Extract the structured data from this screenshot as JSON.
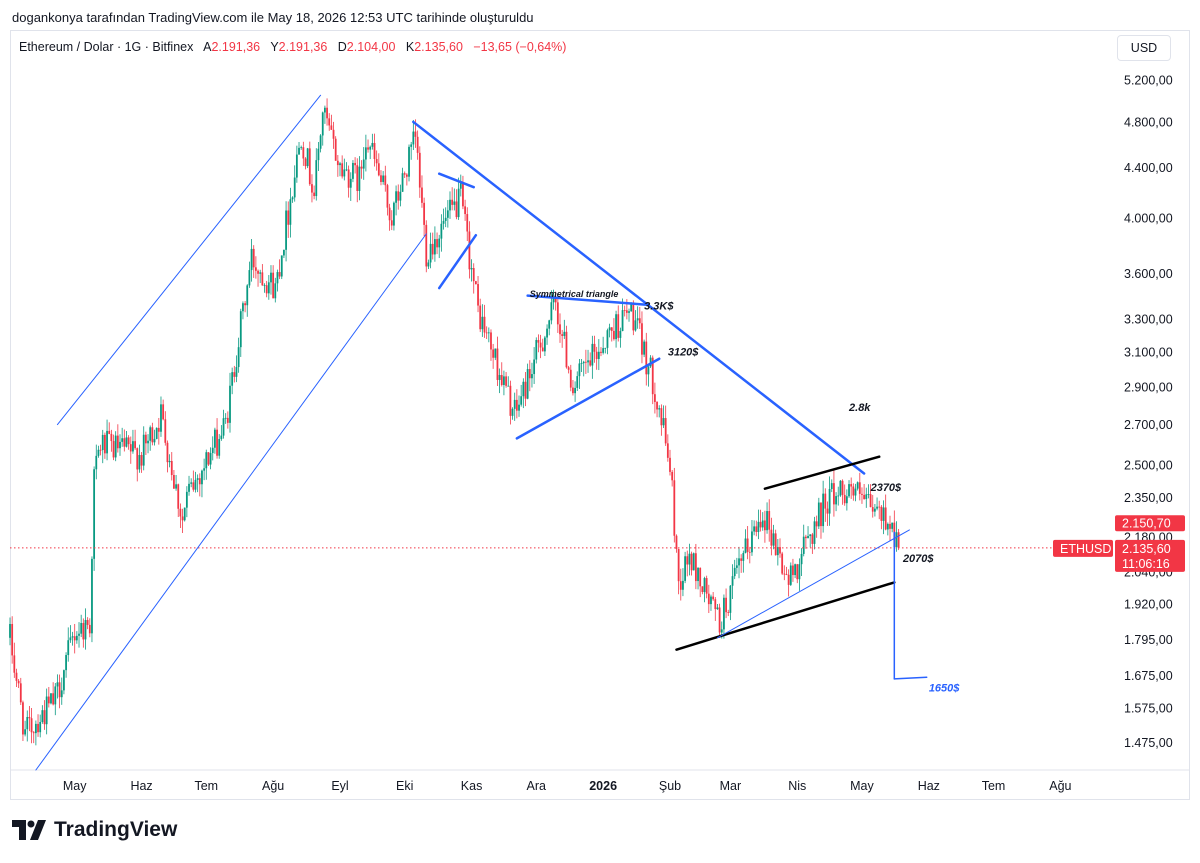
{
  "header": {
    "attribution": "dogankonya tarafından TradingView.com ile May 18, 2026 12:53 UTC tarihinde oluşturuldu"
  },
  "legend": {
    "symbol": "Ethereum / Dolar · 1G · Bitfinex",
    "a_label": "A",
    "a_value": "2.191,36",
    "y_label": "Y",
    "y_value": "2.191,36",
    "d_label": "D",
    "d_value": "2.104,00",
    "k_label": "K",
    "k_value": "2.135,60",
    "change": "−13,65 (−0,64%)"
  },
  "currency_button": "USD",
  "logo_text": "TradingView",
  "colors": {
    "up": "#089981",
    "down": "#f23645",
    "trendline": "#2962ff",
    "marker": "#f23645"
  },
  "price_badges": {
    "ticker": "ETHUSD",
    "upper": "2.150,70",
    "last": "2.135,60",
    "countdown": "11:06:16"
  },
  "chart_data": {
    "type": "candlestick",
    "y_scale": "log",
    "ylim": [
      1400,
      5400
    ],
    "ytick_values": [
      1475,
      1575,
      1675,
      1795,
      1920,
      2040,
      2180,
      2350,
      2500,
      2700,
      2900,
      3100,
      3300,
      3600,
      4000,
      4400,
      4800,
      5200
    ],
    "ytick_labels": [
      "1.475,00",
      "1.575,00",
      "1.675,00",
      "1.795,00",
      "1.920,00",
      "2.040,00",
      "2.180,00",
      "2.350,00",
      "2.500,00",
      "2.700,00",
      "2.900,00",
      "3.100,00",
      "3.300,00",
      "3.600,00",
      "4.000,00",
      "4.400,00",
      "4.800,00",
      "5.200,00"
    ],
    "xlim": [
      "2025-04-01",
      "2026-08-24"
    ],
    "x_ticks": [
      {
        "date": "2025-05-01",
        "label": "May"
      },
      {
        "date": "2025-06-01",
        "label": "Haz"
      },
      {
        "date": "2025-07-01",
        "label": "Tem"
      },
      {
        "date": "2025-08-01",
        "label": "Ağu"
      },
      {
        "date": "2025-09-01",
        "label": "Eyl"
      },
      {
        "date": "2025-10-01",
        "label": "Eki"
      },
      {
        "date": "2025-11-01",
        "label": "Kas"
      },
      {
        "date": "2025-12-01",
        "label": "Ara"
      },
      {
        "date": "2026-01-01",
        "label": "2026"
      },
      {
        "date": "2026-02-01",
        "label": "Şub"
      },
      {
        "date": "2026-03-01",
        "label": "Mar"
      },
      {
        "date": "2026-04-01",
        "label": "Nis"
      },
      {
        "date": "2026-05-01",
        "label": "May"
      },
      {
        "date": "2026-06-01",
        "label": "Haz"
      },
      {
        "date": "2026-07-01",
        "label": "Tem"
      },
      {
        "date": "2026-08-01",
        "label": "Ağu"
      }
    ],
    "price_path": [
      [
        "2025-04-01",
        1800
      ],
      [
        "2025-04-08",
        1500
      ],
      [
        "2025-04-22",
        1600
      ],
      [
        "2025-05-01",
        1820
      ],
      [
        "2025-05-08",
        1850
      ],
      [
        "2025-05-10",
        2450
      ],
      [
        "2025-05-13",
        2600
      ],
      [
        "2025-06-01",
        2550
      ],
      [
        "2025-06-10",
        2750
      ],
      [
        "2025-06-20",
        2250
      ],
      [
        "2025-06-22",
        2350
      ],
      [
        "2025-07-10",
        2700
      ],
      [
        "2025-07-15",
        3100
      ],
      [
        "2025-07-22",
        3700
      ],
      [
        "2025-08-02",
        3500
      ],
      [
        "2025-08-14",
        4700
      ],
      [
        "2025-08-20",
        4200
      ],
      [
        "2025-08-24",
        4900
      ],
      [
        "2025-09-01",
        4400
      ],
      [
        "2025-09-10",
        4300
      ],
      [
        "2025-09-13",
        4700
      ],
      [
        "2025-09-25",
        4000
      ],
      [
        "2025-10-06",
        4650
      ],
      [
        "2025-10-11",
        3750
      ],
      [
        "2025-10-27",
        4150
      ],
      [
        "2025-11-04",
        3350
      ],
      [
        "2025-11-21",
        2750
      ],
      [
        "2025-12-03",
        3150
      ],
      [
        "2025-12-10",
        3400
      ],
      [
        "2025-12-18",
        2900
      ],
      [
        "2026-01-06",
        3250
      ],
      [
        "2026-01-14",
        3350
      ],
      [
        "2026-01-25",
        2900
      ],
      [
        "2026-02-01",
        2500
      ],
      [
        "2026-02-05",
        2000
      ],
      [
        "2026-02-10",
        2100
      ],
      [
        "2026-02-24",
        1850
      ],
      [
        "2026-03-05",
        2050
      ],
      [
        "2026-03-16",
        2300
      ],
      [
        "2026-03-28",
        2000
      ],
      [
        "2026-04-15",
        2350
      ],
      [
        "2026-04-25",
        2400
      ],
      [
        "2026-05-05",
        2300
      ],
      [
        "2026-05-14",
        2250
      ],
      [
        "2026-05-18",
        2135.6
      ]
    ],
    "last_price": 2135.6,
    "annotations": [
      {
        "text": "Symmetrical triangle",
        "date": "2025-11-28",
        "price": 3440,
        "color": "#131722"
      },
      {
        "text": "3.3K$",
        "date": "2026-01-20",
        "price": 3360,
        "color": "#131722"
      },
      {
        "text": "3120$",
        "date": "2026-01-31",
        "price": 3080,
        "color": "#131722"
      },
      {
        "text": "2.8k",
        "date": "2026-04-25",
        "price": 2770,
        "color": "#131722"
      },
      {
        "text": "2370$",
        "date": "2026-05-05",
        "price": 2380,
        "color": "#131722"
      },
      {
        "text": "2070$",
        "date": "2026-05-20",
        "price": 2080,
        "color": "#131722"
      },
      {
        "text": "1650$",
        "date": "2026-06-01",
        "price": 1625,
        "color": "#2962ff"
      }
    ],
    "trendlines": [
      {
        "from": [
          "2025-04-13",
          1400
        ],
        "to": [
          "2025-10-11",
          3880
        ],
        "color": "#2962ff",
        "width": 1
      },
      {
        "from": [
          "2025-04-23",
          2700
        ],
        "to": [
          "2025-08-23",
          5050
        ],
        "color": "#2962ff",
        "width": 1
      },
      {
        "from": [
          "2025-10-05",
          4800
        ],
        "to": [
          "2026-05-02",
          2460
        ],
        "color": "#2962ff",
        "width": 2.5
      },
      {
        "from": [
          "2025-10-17",
          4350
        ],
        "to": [
          "2025-11-02",
          4240
        ],
        "color": "#2962ff",
        "width": 2.5
      },
      {
        "from": [
          "2025-10-17",
          3500
        ],
        "to": [
          "2025-11-03",
          3870
        ],
        "color": "#2962ff",
        "width": 2.5
      },
      {
        "from": [
          "2025-11-27",
          3450
        ],
        "to": [
          "2026-01-22",
          3390
        ],
        "color": "#2962ff",
        "width": 2.5
      },
      {
        "from": [
          "2025-11-22",
          2630
        ],
        "to": [
          "2026-01-27",
          3060
        ],
        "color": "#2962ff",
        "width": 2.5
      },
      {
        "from": [
          "2026-03-17",
          2390
        ],
        "to": [
          "2026-05-09",
          2540
        ],
        "color": "#000000",
        "width": 2.5
      },
      {
        "from": [
          "2026-02-04",
          1760
        ],
        "to": [
          "2026-05-16",
          2000
        ],
        "color": "#000000",
        "width": 2.5
      },
      {
        "from": [
          "2026-02-23",
          1800
        ],
        "to": [
          "2026-05-23",
          2210
        ],
        "color": "#2962ff",
        "width": 1
      },
      {
        "from": [
          "2026-05-16",
          2200
        ],
        "to": [
          "2026-05-16",
          1665
        ],
        "color": "#2962ff",
        "width": 1.5
      },
      {
        "from": [
          "2026-05-16",
          1665
        ],
        "to": [
          "2026-05-31",
          1670
        ],
        "color": "#2962ff",
        "width": 1.5
      }
    ]
  }
}
